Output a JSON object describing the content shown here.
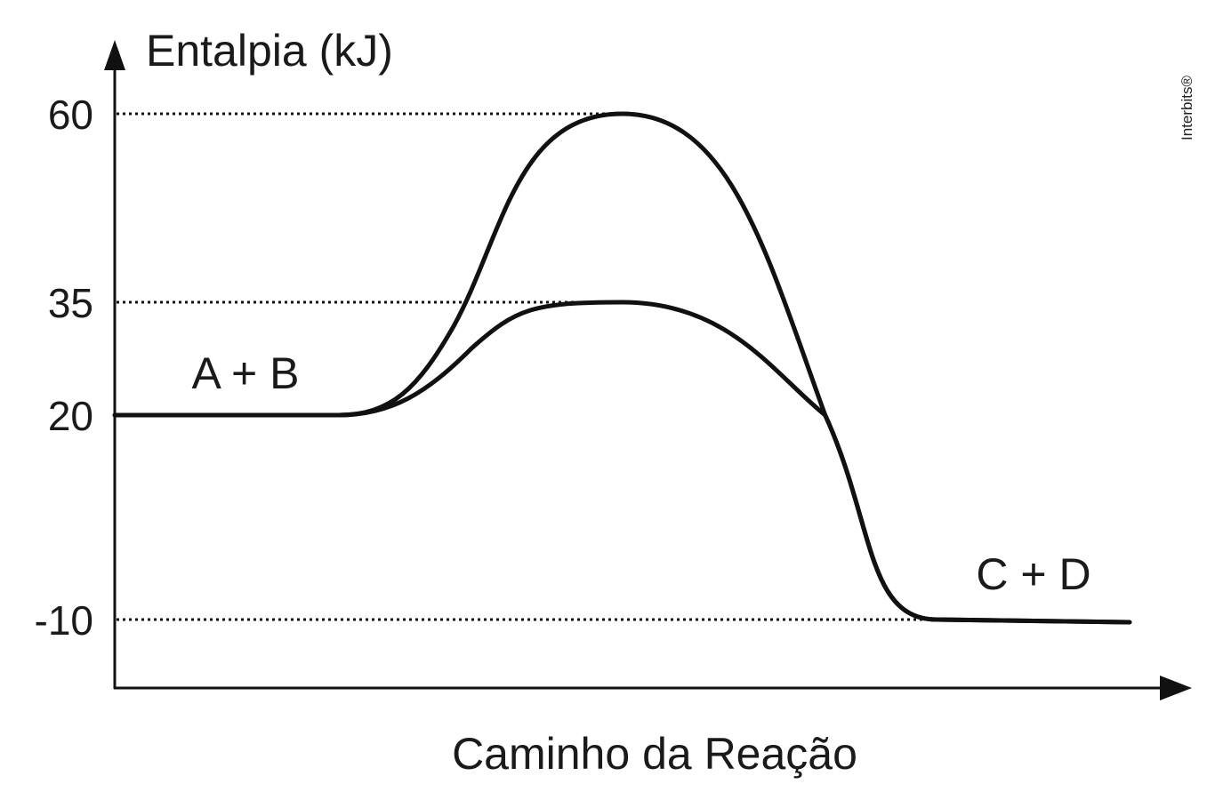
{
  "chart_data": {
    "type": "line",
    "title": "",
    "xlabel": "Caminho da Reação",
    "ylabel": "Entalpia (kJ)",
    "y_ticks": [
      60,
      35,
      20,
      -10
    ],
    "y_tick_labels": [
      "60",
      "35",
      "20",
      "-10"
    ],
    "ylim": [
      -10,
      60
    ],
    "grid": false,
    "reference_lines": [
      60,
      35,
      -10
    ],
    "series": [
      {
        "points": [
          [
            0,
            20
          ],
          [
            22,
            20
          ],
          [
            50,
            60
          ],
          [
            70,
            20
          ],
          [
            81,
            -10
          ],
          [
            100,
            -10
          ]
        ]
      },
      {
        "points": [
          [
            0,
            20
          ],
          [
            22,
            20
          ],
          [
            50,
            35
          ],
          [
            70,
            20
          ],
          [
            81,
            -10
          ],
          [
            100,
            -10
          ]
        ]
      }
    ],
    "annotations": [
      {
        "text": "A + B",
        "x": 13,
        "y": 24
      },
      {
        "text": "C + D",
        "x": 91,
        "y": -4.5
      }
    ],
    "watermark": "Interbits®",
    "colors": {
      "curve": "#111111",
      "axis": "#111111",
      "text": "#1a1a1a"
    }
  }
}
